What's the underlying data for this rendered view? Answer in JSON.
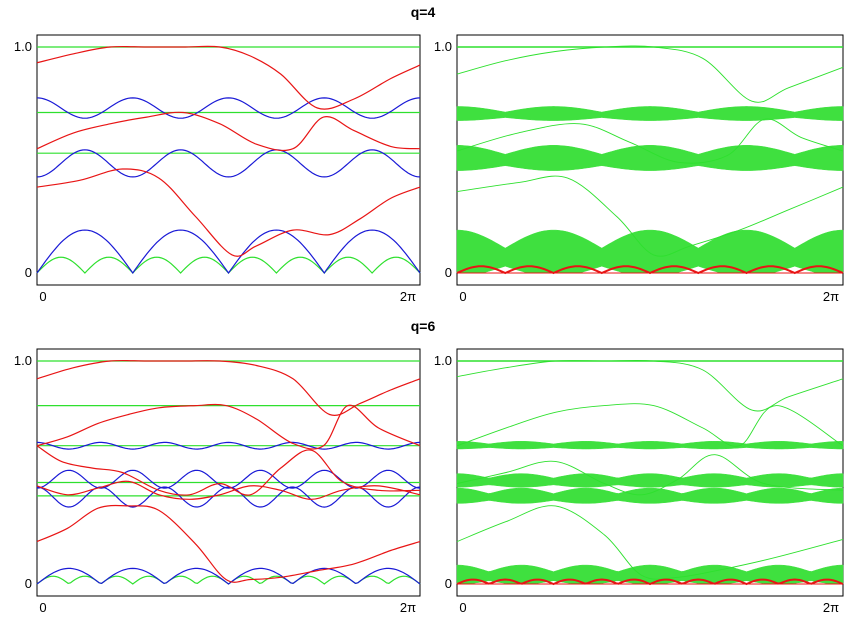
{
  "colors": {
    "red": "#e81515",
    "blue": "#1a1ad6",
    "green": "#2ee02e",
    "band": "#3fe03f",
    "teal": "#2a8a8a",
    "frame": "#000000"
  },
  "rows": [
    {
      "title": "q=4"
    },
    {
      "title": "q=6"
    }
  ],
  "chart_data": [
    {
      "type": "line",
      "x_tick_labels": [
        "0",
        "2π"
      ],
      "y_tick_labels": [
        "0",
        "1.0"
      ],
      "xlim": [
        0,
        6.283
      ],
      "ylim": [
        0,
        1.05
      ],
      "series": [
        {
          "color": "green",
          "kind": "flat",
          "y": 1.0
        },
        {
          "color": "green",
          "kind": "flat",
          "y": 0.71
        },
        {
          "color": "green",
          "kind": "flat",
          "y": 0.53
        },
        {
          "color": "green",
          "kind": "arches",
          "base": 0.0,
          "amp": 0.07,
          "periods": 8
        },
        {
          "color": "blue",
          "kind": "cos",
          "mid": 0.73,
          "amp": 0.045,
          "periods": 4,
          "phase": 0
        },
        {
          "color": "blue",
          "kind": "cos",
          "mid": 0.485,
          "amp": 0.06,
          "periods": 4,
          "phase": 3.14
        },
        {
          "color": "blue",
          "kind": "arches",
          "base": 0.0,
          "amp": 0.19,
          "periods": 4
        },
        {
          "color": "red",
          "kind": "pts",
          "x": [
            0,
            0.6,
            1.2,
            1.8,
            2.4,
            3.0,
            3.5,
            4.0,
            4.6,
            5.2,
            5.8,
            6.283
          ],
          "y": [
            0.93,
            0.97,
            1.0,
            1.0,
            1.0,
            1.0,
            0.96,
            0.88,
            0.73,
            0.77,
            0.86,
            0.92
          ]
        },
        {
          "color": "red",
          "kind": "pts",
          "x": [
            0,
            0.6,
            1.2,
            1.8,
            2.4,
            3.0,
            3.6,
            4.2,
            4.7,
            5.2,
            5.8,
            6.283
          ],
          "y": [
            0.55,
            0.62,
            0.66,
            0.69,
            0.71,
            0.66,
            0.57,
            0.55,
            0.69,
            0.63,
            0.56,
            0.55
          ]
        },
        {
          "color": "red",
          "kind": "pts",
          "x": [
            0,
            0.7,
            1.4,
            2.0,
            2.6,
            3.2,
            3.6,
            4.2,
            4.8,
            5.3,
            5.8,
            6.283
          ],
          "y": [
            0.38,
            0.41,
            0.46,
            0.42,
            0.25,
            0.08,
            0.12,
            0.19,
            0.17,
            0.24,
            0.33,
            0.38
          ]
        }
      ]
    },
    {
      "type": "band",
      "x_tick_labels": [
        "0",
        "2π"
      ],
      "y_tick_labels": [
        "0",
        "1.0"
      ],
      "xlim": [
        0,
        6.283
      ],
      "ylim": [
        0,
        1.05
      ],
      "bands": [
        {
          "mid": 0.7,
          "amp": 0.025,
          "pw": 0.012,
          "periods": 4
        },
        {
          "mid": 0.5,
          "amp": 0.04,
          "pw": 0.025,
          "periods": 4
        },
        {
          "mid": 0.07,
          "amp": 0.08,
          "pw": 0.04,
          "periods": 4
        }
      ],
      "thin_lines": [
        {
          "x": [
            0,
            0.8,
            1.6,
            2.4,
            3.2,
            4.0,
            4.8,
            5.4,
            6.283
          ],
          "y": [
            0.88,
            0.94,
            0.98,
            1.0,
            1.0,
            0.95,
            0.76,
            0.82,
            0.91
          ]
        },
        {
          "x": [
            0,
            1.0,
            2.0,
            2.8,
            3.6,
            4.4,
            5.0,
            5.6,
            6.283
          ],
          "y": [
            0.54,
            0.62,
            0.66,
            0.58,
            0.49,
            0.52,
            0.68,
            0.6,
            0.54
          ]
        },
        {
          "x": [
            0,
            1.0,
            1.8,
            2.6,
            3.2,
            3.8,
            4.6,
            5.4,
            6.283
          ],
          "y": [
            0.36,
            0.4,
            0.42,
            0.25,
            0.08,
            0.12,
            0.19,
            0.28,
            0.38
          ]
        }
      ],
      "red_base": {
        "mid": 0.0,
        "amp": 0.03,
        "periods": 8
      }
    },
    {
      "type": "line",
      "x_tick_labels": [
        "0",
        "2π"
      ],
      "y_tick_labels": [
        "0",
        "1.0"
      ],
      "xlim": [
        0,
        6.283
      ],
      "ylim": [
        0,
        1.05
      ],
      "series": [
        {
          "color": "green",
          "kind": "flat",
          "y": 1.0
        },
        {
          "color": "green",
          "kind": "flat",
          "y": 0.8
        },
        {
          "color": "green",
          "kind": "flat",
          "y": 0.62
        },
        {
          "color": "green",
          "kind": "flat",
          "y": 0.455
        },
        {
          "color": "green",
          "kind": "flat",
          "y": 0.395
        },
        {
          "color": "green",
          "kind": "arches",
          "base": 0.0,
          "amp": 0.035,
          "periods": 12
        },
        {
          "color": "blue",
          "kind": "cos",
          "mid": 0.62,
          "amp": 0.015,
          "periods": 6,
          "phase": 0
        },
        {
          "color": "blue",
          "kind": "cos",
          "mid": 0.47,
          "amp": 0.04,
          "periods": 6,
          "phase": 3.14
        },
        {
          "color": "blue",
          "kind": "cos",
          "mid": 0.39,
          "amp": 0.045,
          "periods": 6,
          "phase": 0
        },
        {
          "color": "blue",
          "kind": "arches",
          "base": 0.0,
          "amp": 0.07,
          "periods": 6
        },
        {
          "color": "red",
          "kind": "pts",
          "x": [
            0,
            0.6,
            1.2,
            1.8,
            2.4,
            3.0,
            3.6,
            4.2,
            4.8,
            5.3,
            5.8,
            6.283
          ],
          "y": [
            0.92,
            0.97,
            1.0,
            1.0,
            1.0,
            1.0,
            0.98,
            0.92,
            0.76,
            0.81,
            0.87,
            0.92
          ]
        },
        {
          "color": "red",
          "kind": "pts",
          "x": [
            0,
            0.5,
            1.0,
            1.5,
            2.0,
            2.6,
            3.1,
            3.6,
            4.2,
            4.7,
            5.1,
            5.6,
            6.283
          ],
          "y": [
            0.62,
            0.66,
            0.72,
            0.76,
            0.79,
            0.8,
            0.8,
            0.74,
            0.63,
            0.62,
            0.8,
            0.7,
            0.62
          ]
        },
        {
          "color": "red",
          "kind": "pts",
          "x": [
            0,
            0.4,
            0.9,
            1.4,
            2.0,
            2.5,
            3.0,
            3.5,
            4.0,
            4.5,
            5.0,
            5.6,
            6.283
          ],
          "y": [
            0.62,
            0.55,
            0.52,
            0.5,
            0.42,
            0.4,
            0.45,
            0.4,
            0.52,
            0.6,
            0.46,
            0.42,
            0.42
          ]
        },
        {
          "color": "red",
          "kind": "pts",
          "x": [
            0,
            0.5,
            1.0,
            1.5,
            2.0,
            2.5,
            3.0,
            3.5,
            4.0,
            4.5,
            5.0,
            5.6,
            6.283
          ],
          "y": [
            0.44,
            0.4,
            0.43,
            0.46,
            0.4,
            0.38,
            0.4,
            0.44,
            0.42,
            0.38,
            0.42,
            0.44,
            0.4
          ]
        },
        {
          "color": "red",
          "kind": "pts",
          "x": [
            0,
            0.5,
            1.0,
            1.5,
            2.0,
            2.6,
            3.1,
            3.5,
            4.0,
            4.6,
            5.2,
            5.8,
            6.283
          ],
          "y": [
            0.19,
            0.25,
            0.34,
            0.35,
            0.33,
            0.18,
            0.02,
            0.02,
            0.03,
            0.06,
            0.09,
            0.15,
            0.19
          ]
        }
      ]
    },
    {
      "type": "band",
      "x_tick_labels": [
        "0",
        "2π"
      ],
      "y_tick_labels": [
        "0",
        "1.0"
      ],
      "xlim": [
        0,
        6.283
      ],
      "ylim": [
        0,
        1.05
      ],
      "bands": [
        {
          "mid": 0.62,
          "amp": 0.012,
          "pw": 0.008,
          "periods": 6
        },
        {
          "mid": 0.46,
          "amp": 0.02,
          "pw": 0.015,
          "periods": 6
        },
        {
          "mid": 0.39,
          "amp": 0.025,
          "pw": 0.015,
          "periods": 6
        },
        {
          "mid": 0.035,
          "amp": 0.03,
          "pw": 0.02,
          "periods": 6
        }
      ],
      "thin_lines": [
        {
          "x": [
            0,
            0.8,
            1.6,
            2.4,
            3.2,
            4.0,
            4.8,
            5.4,
            6.283
          ],
          "y": [
            0.93,
            0.97,
            1.0,
            1.0,
            1.0,
            0.96,
            0.78,
            0.84,
            0.92
          ]
        },
        {
          "x": [
            0,
            0.8,
            1.6,
            2.4,
            3.2,
            4.0,
            4.6,
            5.2,
            6.283
          ],
          "y": [
            0.62,
            0.7,
            0.77,
            0.8,
            0.8,
            0.7,
            0.62,
            0.8,
            0.62
          ]
        },
        {
          "x": [
            0,
            0.8,
            1.6,
            2.4,
            3.0,
            3.6,
            4.2,
            5.0,
            6.283
          ],
          "y": [
            0.45,
            0.5,
            0.55,
            0.45,
            0.4,
            0.47,
            0.58,
            0.45,
            0.42
          ]
        },
        {
          "x": [
            0,
            0.8,
            1.6,
            2.4,
            3.0,
            3.6,
            4.4,
            5.2,
            6.283
          ],
          "y": [
            0.19,
            0.28,
            0.35,
            0.22,
            0.04,
            0.03,
            0.07,
            0.12,
            0.2
          ]
        }
      ],
      "red_base": {
        "mid": 0.0,
        "amp": 0.02,
        "periods": 12
      }
    }
  ]
}
